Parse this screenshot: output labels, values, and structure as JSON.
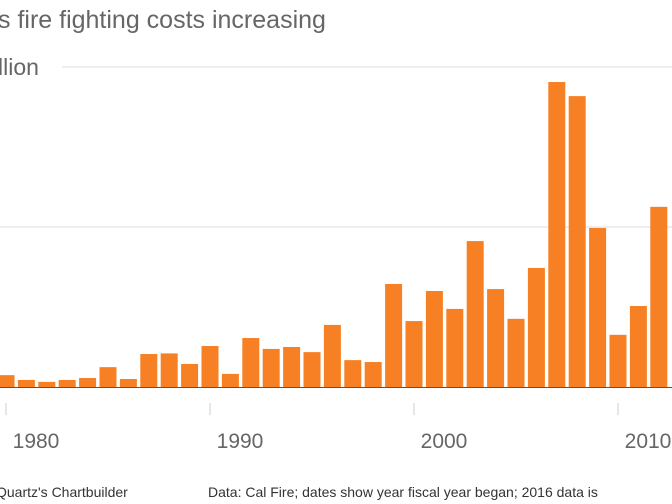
{
  "title": "s fire fighting costs increasing",
  "chart_data": {
    "type": "bar",
    "title": "s fire fighting costs increasing",
    "xlabel": "",
    "ylabel": "",
    "ytick_labels_visible": [
      "llion"
    ],
    "ylim": [
      0,
      1
    ],
    "grid": true,
    "x": [
      1980,
      1981,
      1982,
      1983,
      1984,
      1985,
      1986,
      1987,
      1988,
      1989,
      1990,
      1991,
      1992,
      1993,
      1994,
      1995,
      1996,
      1997,
      1998,
      1999,
      2000,
      2001,
      2002,
      2003,
      2004,
      2005,
      2006,
      2007,
      2008,
      2009,
      2010,
      2011,
      2012
    ],
    "values": [
      0.037,
      0.022,
      0.016,
      0.022,
      0.028,
      0.062,
      0.025,
      0.103,
      0.105,
      0.072,
      0.128,
      0.041,
      0.153,
      0.119,
      0.125,
      0.109,
      0.194,
      0.084,
      0.078,
      0.322,
      0.206,
      0.3,
      0.244,
      0.456,
      0.306,
      0.213,
      0.372,
      0.953,
      0.909,
      0.497,
      0.163,
      0.253,
      0.563
    ],
    "xticks": [
      1980,
      1990,
      2000,
      2010
    ],
    "xtick_labels": [
      "1980",
      "1990",
      "2000",
      "2010"
    ],
    "bar_color": "#f78024"
  },
  "footer": {
    "credit": "Quartz's Chartbuilder",
    "source": "Data: Cal Fire; dates show year fiscal year began; 2016 data is"
  }
}
